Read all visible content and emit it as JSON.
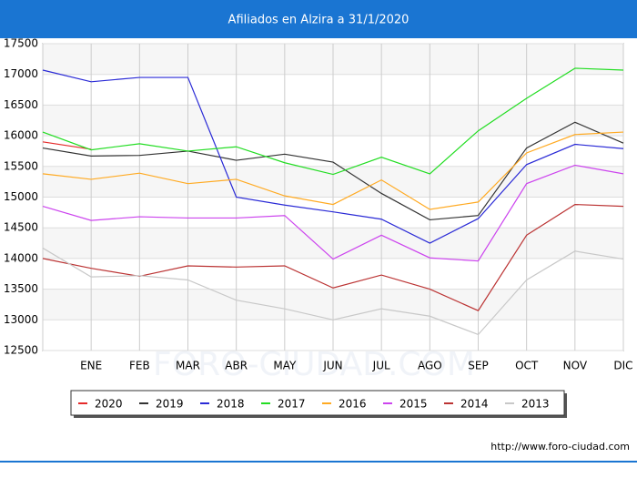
{
  "chart_data": {
    "type": "line",
    "title": "Afiliados en Alzira a 31/1/2020",
    "categories": [
      null,
      "ENE",
      "FEB",
      "MAR",
      "ABR",
      "MAY",
      "JUN",
      "JUL",
      "AGO",
      "SEP",
      "OCT",
      "NOV",
      "DIC"
    ],
    "series": [
      {
        "name": "2020",
        "color": "#e52a2a",
        "values": [
          15900,
          15780,
          null,
          null,
          null,
          null,
          null,
          null,
          null,
          null,
          null,
          null,
          null
        ]
      },
      {
        "name": "2019",
        "color": "#333333",
        "values": [
          15800,
          15670,
          15680,
          15750,
          15600,
          15700,
          15570,
          15060,
          14630,
          14700,
          15800,
          16220,
          15880
        ]
      },
      {
        "name": "2018",
        "color": "#2a2ad6",
        "values": [
          17070,
          16880,
          16950,
          16950,
          15000,
          14870,
          14760,
          14640,
          14250,
          14650,
          15530,
          15860,
          15790
        ]
      },
      {
        "name": "2017",
        "color": "#22dd22",
        "values": [
          16060,
          15770,
          15870,
          15750,
          15820,
          15560,
          15370,
          15650,
          15380,
          16080,
          16610,
          17100,
          17070
        ]
      },
      {
        "name": "2016",
        "color": "#ffaa22",
        "values": [
          15380,
          15290,
          15390,
          15220,
          15290,
          15020,
          14880,
          15280,
          14800,
          14920,
          15720,
          16020,
          16060
        ]
      },
      {
        "name": "2015",
        "color": "#cc44ee",
        "values": [
          14850,
          14620,
          14680,
          14660,
          14660,
          14700,
          13990,
          14380,
          14010,
          13960,
          15220,
          15520,
          15380
        ]
      },
      {
        "name": "2014",
        "color": "#bb3333",
        "values": [
          14000,
          13840,
          13710,
          13880,
          13860,
          13880,
          13520,
          13730,
          13500,
          13150,
          14380,
          14880,
          14850
        ]
      },
      {
        "name": "2013",
        "color": "#c8c8c8",
        "values": [
          14170,
          13700,
          13720,
          13650,
          13320,
          13180,
          13000,
          13180,
          13060,
          12760,
          13650,
          14120,
          13990
        ]
      }
    ],
    "ylim": [
      12500,
      17500
    ],
    "yticks": [
      12500,
      13000,
      13500,
      14000,
      14500,
      15000,
      15500,
      16000,
      16500,
      17000,
      17500
    ],
    "grid": true,
    "watermark": "FORO-CIUDAD.COM",
    "source": "http://www.foro-ciudad.com"
  }
}
